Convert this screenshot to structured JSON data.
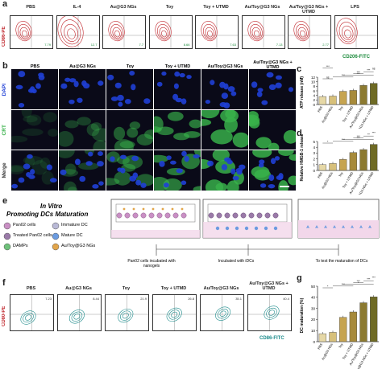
{
  "panels": {
    "a": "a",
    "b": "b",
    "c": "c",
    "d": "d",
    "e": "e",
    "f": "f",
    "g": "g"
  },
  "panel_a": {
    "y_axis": "CD86-PE",
    "x_axis": "CD206-FITC",
    "groups": [
      {
        "title": "PBS",
        "tl": "",
        "br": "7.79"
      },
      {
        "title": "IL-4",
        "tl": "",
        "br": "12.7"
      },
      {
        "title": "Au@G3 NGs",
        "tl": "",
        "br": "7.7"
      },
      {
        "title": "Toy",
        "tl": "",
        "br": "8.66"
      },
      {
        "title": "Toy + UTMD",
        "tl": "",
        "br": "7.63"
      },
      {
        "title": "Au/Toy@G3 NGs",
        "tl": "",
        "br": "7.13"
      },
      {
        "title": "Au/Toy@G3 NGs + UTMD",
        "tl": "",
        "br": "2.77"
      },
      {
        "title": "LPS",
        "tl": "",
        "br": ""
      }
    ]
  },
  "panel_b": {
    "columns": [
      "PBS",
      "Au@G3 NGs",
      "Toy",
      "Toy + UTMD",
      "Au/Toy@G3 NGs",
      "Au/Toy@G3 NGs + UTMD"
    ],
    "rows": [
      "DAPI",
      "CRT",
      "Merge"
    ]
  },
  "chart_data": [
    {
      "type": "bar",
      "panel": "c",
      "ylabel": "ATP release (nM)",
      "ylim": [
        0,
        12
      ],
      "yticks": [
        "0",
        "2",
        "4",
        "6",
        "8",
        "10",
        "12"
      ],
      "categories": [
        "PBS",
        "Au@G3 NGs",
        "Toy",
        "Toy + UTMD",
        "Au/Toy@G3 NGs",
        "Au/Toy@G3 NGs + UTMD"
      ],
      "values": [
        3.5,
        3.7,
        5.8,
        6.2,
        8.4,
        9.3
      ],
      "colors": [
        "#e6d8a6",
        "#d7c07a",
        "#c6a450",
        "#a78a3a",
        "#8c7a30",
        "#6e6a24"
      ],
      "significance": [
        "ns",
        "***",
        "***",
        "***",
        "***",
        "ns",
        "***"
      ]
    },
    {
      "type": "bar",
      "panel": "d",
      "ylabel": "Relative HMGB-1 release",
      "ylim": [
        0,
        5
      ],
      "yticks": [
        "0",
        "1",
        "2",
        "3",
        "4",
        "5"
      ],
      "categories": [
        "PBS",
        "Au@G3 NGs",
        "Toy",
        "Toy + UTMD",
        "Au/Toy@G3 NGs",
        "Au/Toy@G3 NGs + UTMD"
      ],
      "values": [
        1.0,
        1.2,
        1.9,
        3.1,
        3.6,
        4.5
      ],
      "colors": [
        "#e6d8a6",
        "#d7c07a",
        "#c6a450",
        "#a78a3a",
        "#8c7a30",
        "#6e6a24"
      ],
      "significance": [
        "*",
        "***",
        "***",
        "***",
        "**",
        "***"
      ]
    },
    {
      "type": "bar",
      "panel": "g",
      "ylabel": "DC maturation (%)",
      "ylim": [
        0,
        50
      ],
      "yticks": [
        "0",
        "10",
        "20",
        "30",
        "40",
        "50"
      ],
      "categories": [
        "PBS",
        "Au@G3 NGs",
        "Toy",
        "Toy + UTMD",
        "Au/Toy@G3 NGs",
        "Au/Toy@G3 NGs + UTMD"
      ],
      "values": [
        7.2,
        8.4,
        21.9,
        26.8,
        35.1,
        40.4
      ],
      "colors": [
        "#e6d8a6",
        "#d7c07a",
        "#c6a450",
        "#a78a3a",
        "#8c7a30",
        "#6e6a24"
      ],
      "significance": [
        "*",
        "***",
        "*",
        "***",
        "***",
        "***"
      ]
    }
  ],
  "panel_e": {
    "title_line1": "In Vitro",
    "title_line2": "Promoting DCs Maturation",
    "legend": [
      {
        "label": "Pan02 cells",
        "icon": "cell-icon"
      },
      {
        "label": "Immature DC",
        "icon": "immature-dc-icon"
      },
      {
        "label": "Treated Pan02 cells",
        "icon": "treated-cell-icon"
      },
      {
        "label": "Mature DC",
        "icon": "mature-dc-icon"
      },
      {
        "label": "DAMPs",
        "icon": "damps-icon"
      },
      {
        "label": "Au/Toy@G3 NGs",
        "icon": "nanogel-icon"
      }
    ],
    "step1": "Pan02 cells incubated with nanogels",
    "step2": "Incubated with iDCs",
    "step3": "To test the maturation of DCs"
  },
  "panel_f": {
    "y_axis": "CD80-PE",
    "x_axis": "CD86-FITC",
    "groups": [
      {
        "title": "PBS",
        "value": "7.23"
      },
      {
        "title": "Au@G3 NGs",
        "value": "8.44"
      },
      {
        "title": "Toy",
        "value": "21.9"
      },
      {
        "title": "Toy + UTMD",
        "value": "26.8"
      },
      {
        "title": "Au/Toy@G3 NGs",
        "value": "35.1"
      },
      {
        "title": "Au/Toy@G3 NGs + UTMD",
        "value": "40.4"
      }
    ]
  },
  "colors": {
    "contour_a": "#c0272d",
    "contour_f": "#1a8a8a",
    "dapi": "#1f3fd6",
    "crt": "#38b24a",
    "bar_dark": "#6e6a24"
  }
}
